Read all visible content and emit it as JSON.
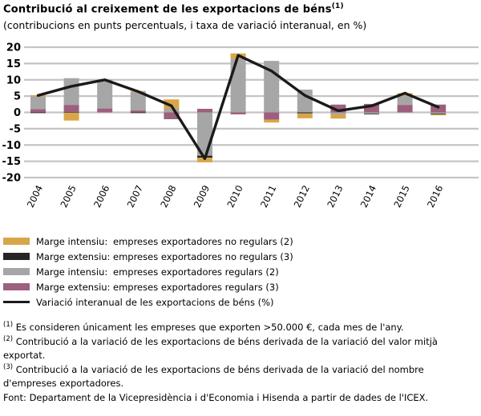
{
  "header": {
    "title": "Contribució al creixement de les exportacions de béns",
    "title_sup": "(1)",
    "subtitle": "(contribucions en punts percentuals, i taxa de variació interanual, en %)"
  },
  "colors": {
    "yellow": "#D8A648",
    "dark": "#262626",
    "gray": "#A6A6A6",
    "purple": "#9D5F7D",
    "line": "#1A1A1A",
    "grid": "#C4C4C4"
  },
  "chart_data": {
    "type": "bar",
    "subtype": "stacked-bars-with-line",
    "categories": [
      "2004",
      "2005",
      "2006",
      "2007",
      "2008",
      "2009",
      "2010",
      "2011",
      "2012",
      "2013",
      "2014",
      "2015",
      "2016"
    ],
    "ylim": [
      -20,
      20
    ],
    "yticks": [
      20,
      15,
      10,
      5,
      0,
      -5,
      -10,
      -15,
      -20
    ],
    "grid": true,
    "series": [
      {
        "key": "marge_extensiu_regulars",
        "color": "#9D5F7D",
        "values": [
          1.0,
          2.3,
          1.2,
          0.6,
          -1.8,
          1.1,
          -0.6,
          -2.2,
          0,
          2.4,
          2.6,
          2.3,
          2.4
        ]
      },
      {
        "key": "marge_intensiu_regulars",
        "color": "#A6A6A6",
        "values": [
          3.9,
          8.2,
          8.5,
          5.7,
          1.1,
          -13.3,
          16.5,
          15.8,
          7.0,
          -0.6,
          -0.4,
          2.7,
          -0.4
        ]
      },
      {
        "key": "marge_extensiu_no_regulars",
        "color": "#262626",
        "values": [
          -0.1,
          -0.1,
          0,
          -0.2,
          -0.2,
          -0.6,
          0,
          0,
          -0.3,
          0,
          -0.2,
          0,
          -0.2
        ]
      },
      {
        "key": "marge_intensiu_no_regulars",
        "color": "#D8A648",
        "values": [
          0.4,
          -2.4,
          0.3,
          0.3,
          2.9,
          -1.4,
          1.6,
          -0.9,
          -1.5,
          -1.3,
          0,
          0.9,
          -0.3
        ]
      }
    ],
    "line_series": {
      "key": "variacio_interanual",
      "color": "#1A1A1A",
      "values": [
        5.2,
        8.0,
        10.0,
        6.4,
        2.0,
        -14.2,
        17.5,
        12.7,
        5.2,
        0.5,
        2.0,
        5.9,
        1.6
      ]
    }
  },
  "legend": {
    "items": [
      {
        "type": "box",
        "color": "#D8A648",
        "margin": "Marge intensiu:",
        "detail": "empreses exportadores no regulars (2)"
      },
      {
        "type": "box",
        "color": "#262626",
        "margin": "Marge extensiu:",
        "detail": "empreses exportadores no regulars (3)"
      },
      {
        "type": "box",
        "color": "#A6A6A6",
        "margin": "Marge intensiu:",
        "detail": "empreses exportadores regulars (2)"
      },
      {
        "type": "box",
        "color": "#9D5F7D",
        "margin": "Marge extensiu:",
        "detail": "empreses exportadores regulars (3)"
      },
      {
        "type": "line",
        "color": "#1A1A1A",
        "label": "Variació interanual de les exportacions de béns (%)"
      }
    ]
  },
  "notes": [
    {
      "marker": "(1)",
      "text": "Es consideren únicament les empreses que exporten >50.000 €, cada mes de l'any."
    },
    {
      "marker": "(2)",
      "text": "Contribució a la variació de les exportacions de béns derivada de la variació del valor mitjà exportat."
    },
    {
      "marker": "(3)",
      "text": "Contribució a la variació de les exportacions de béns derivada de la variació del nombre d'empreses exportadores."
    },
    {
      "marker": "",
      "text": "Font: Departament de la Vicepresidència i d'Economia i Hisenda a partir de dades de l'ICEX."
    }
  ]
}
